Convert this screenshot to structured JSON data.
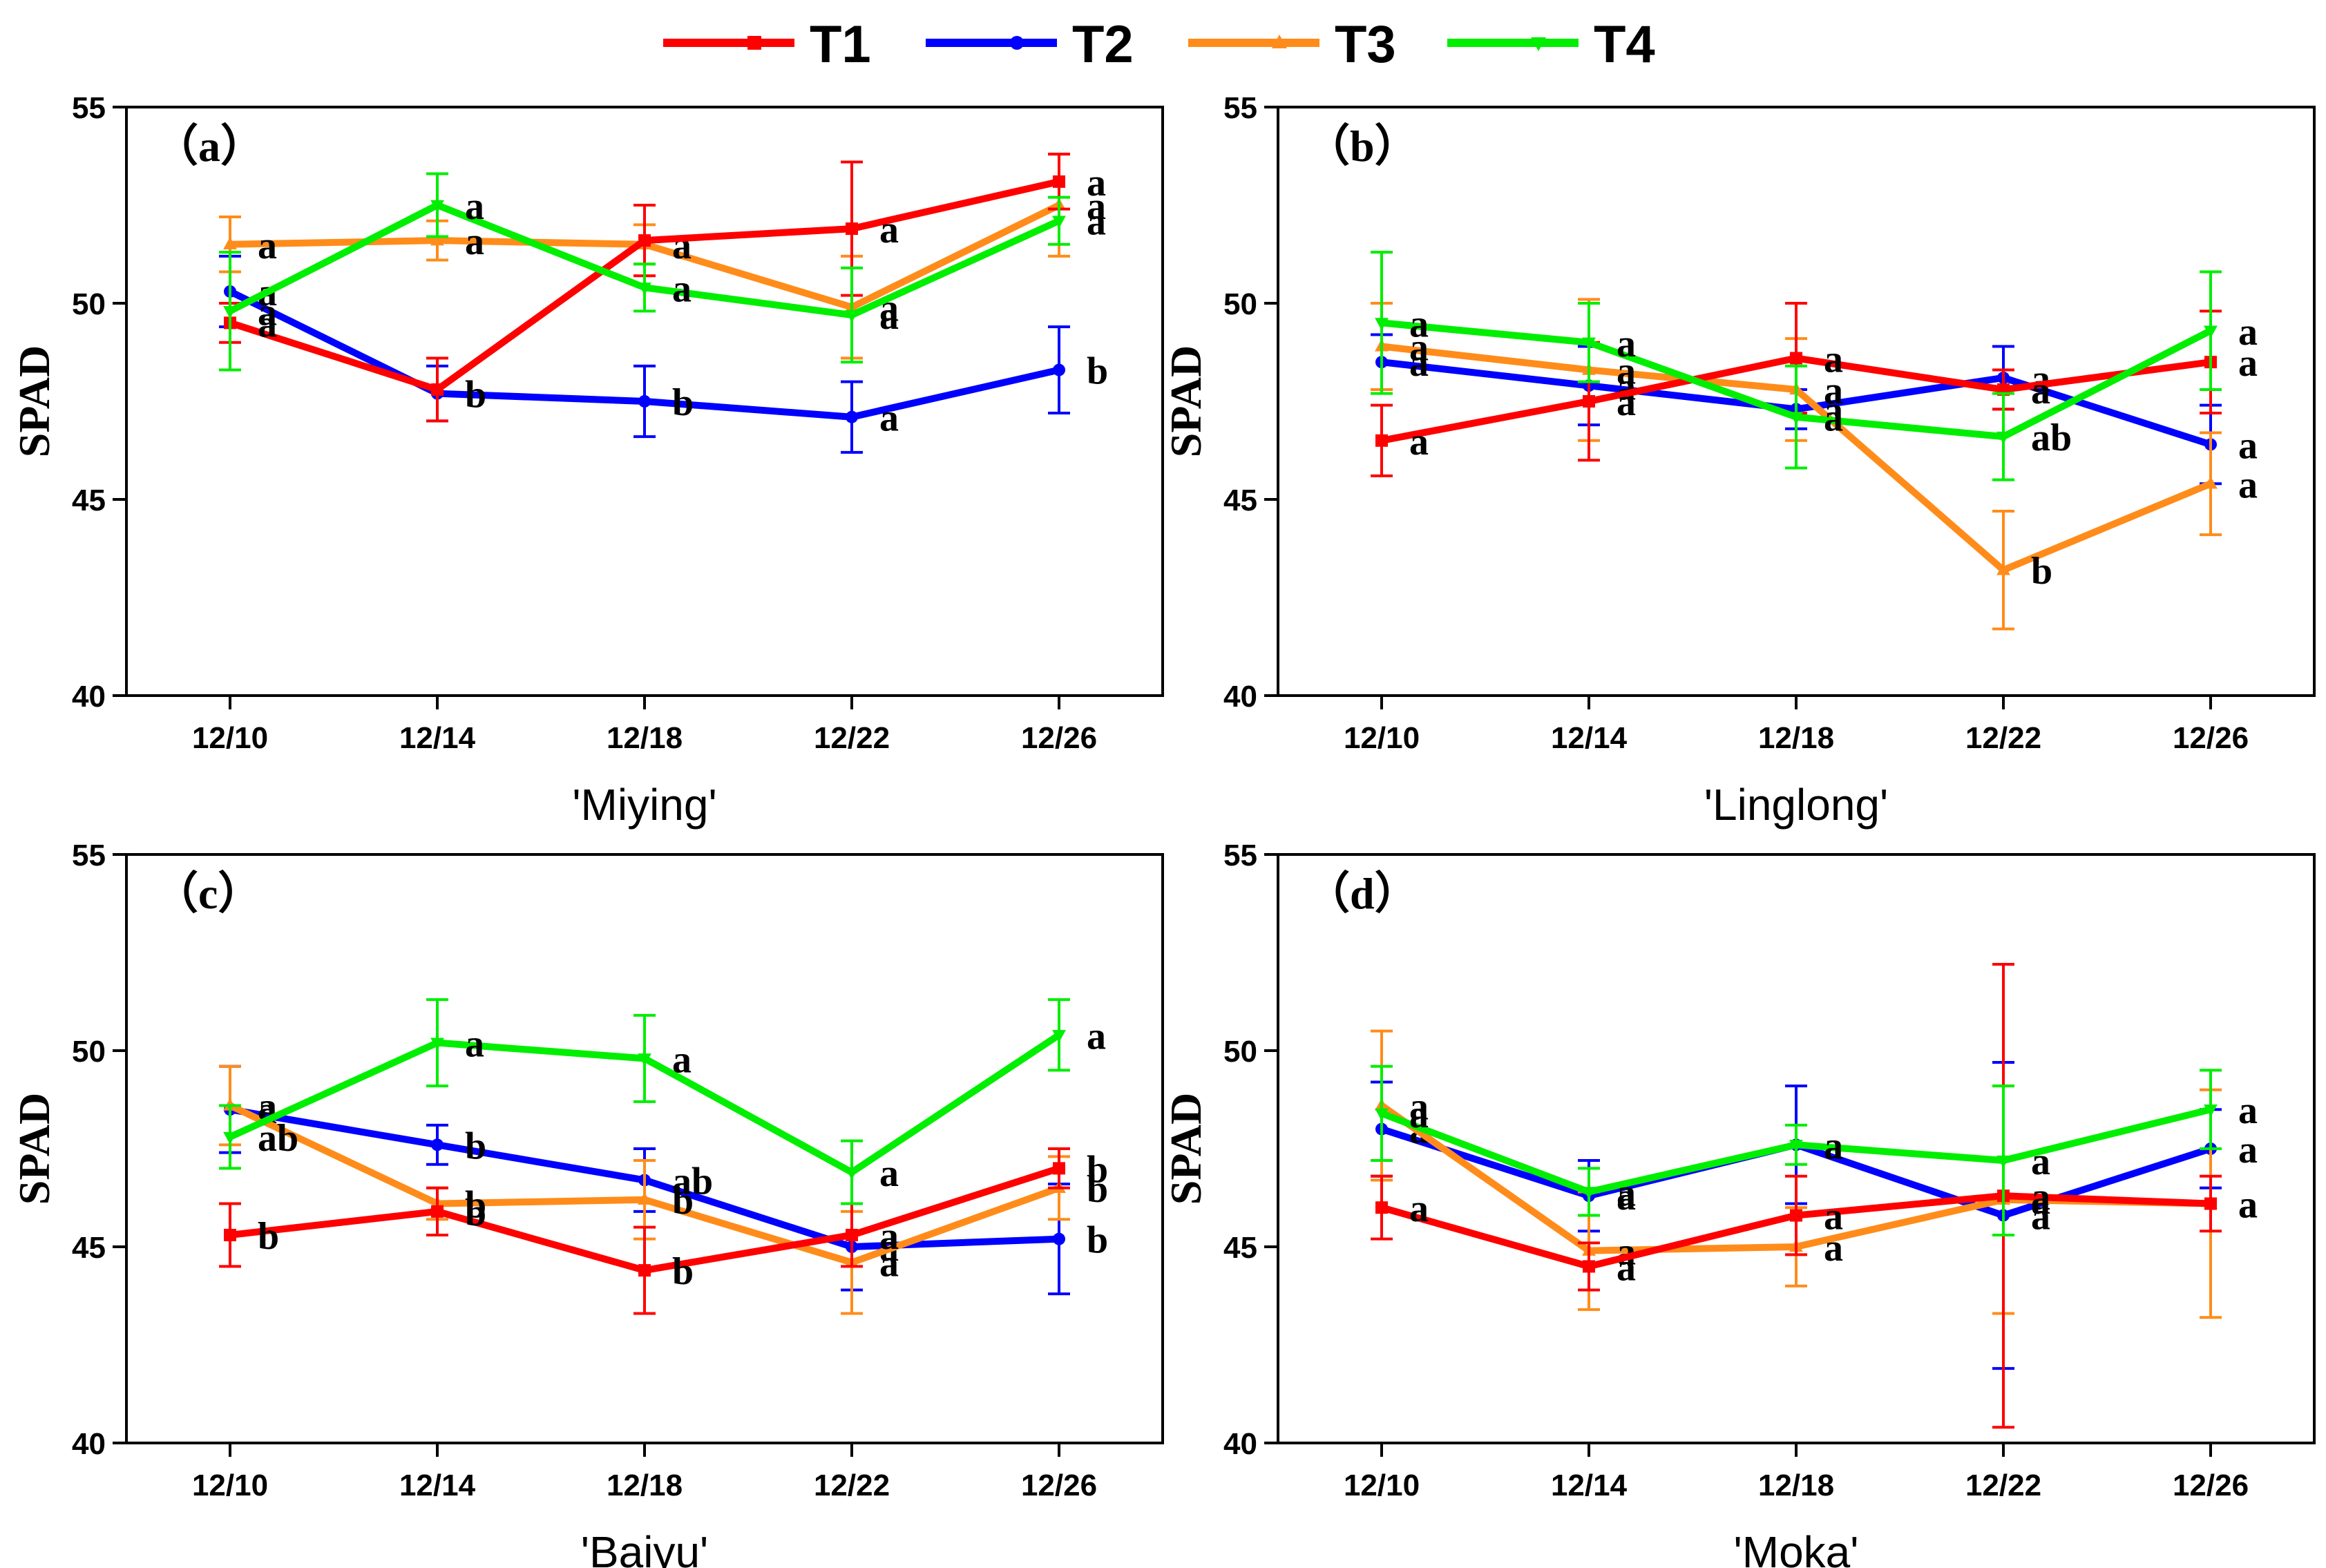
{
  "chart_data": {
    "type": "line",
    "title": "",
    "legend": {
      "placement": "top-center",
      "entries": [
        {
          "name": "T1",
          "color": "#ff0000",
          "marker": "square"
        },
        {
          "name": "T2",
          "color": "#0000ff",
          "marker": "circle"
        },
        {
          "name": "T3",
          "color": "#ff8c1a",
          "marker": "triangle-up"
        },
        {
          "name": "T4",
          "color": "#00ee00",
          "marker": "triangle-down"
        }
      ]
    },
    "panels": [
      {
        "id": "a",
        "panel_label": "（a）",
        "xlabel": "'Miying'",
        "ylabel": "SPAD",
        "categories": [
          "12/10",
          "12/14",
          "12/18",
          "12/22",
          "12/26"
        ],
        "ylim": [
          40,
          55
        ],
        "yticks": [
          40,
          45,
          50,
          55
        ],
        "series": [
          {
            "name": "T1",
            "values": [
              49.5,
              47.8,
              51.6,
              51.9,
              53.1
            ],
            "errors": [
              0.5,
              0.8,
              0.9,
              1.7,
              0.7
            ],
            "labels": [
              "a",
              "",
              "",
              "a",
              "a"
            ]
          },
          {
            "name": "T2",
            "values": [
              50.3,
              47.7,
              47.5,
              47.1,
              48.3
            ],
            "errors": [
              0.9,
              0.7,
              0.9,
              0.9,
              1.1
            ],
            "labels": [
              "a",
              "b",
              "b",
              "a",
              "b"
            ]
          },
          {
            "name": "T3",
            "values": [
              51.5,
              51.6,
              51.5,
              49.9,
              52.5
            ],
            "errors": [
              0.7,
              0.5,
              0.5,
              1.3,
              1.3
            ],
            "labels": [
              "a",
              "a",
              "a",
              "a",
              "a"
            ]
          },
          {
            "name": "T4",
            "values": [
              49.8,
              52.5,
              50.4,
              49.7,
              52.1
            ],
            "errors": [
              1.5,
              0.8,
              0.6,
              1.2,
              0.6
            ],
            "labels": [
              "a",
              "a",
              "a",
              "a",
              "a"
            ]
          }
        ]
      },
      {
        "id": "b",
        "panel_label": "（b）",
        "xlabel": "'Linglong'",
        "ylabel": "SPAD",
        "categories": [
          "12/10",
          "12/14",
          "12/18",
          "12/22",
          "12/26"
        ],
        "ylim": [
          40,
          55
        ],
        "yticks": [
          40,
          45,
          50,
          55
        ],
        "series": [
          {
            "name": "T1",
            "values": [
              46.5,
              47.5,
              48.6,
              47.8,
              48.5
            ],
            "errors": [
              0.9,
              1.5,
              1.4,
              0.5,
              1.3
            ],
            "labels": [
              "a",
              "a",
              "a",
              "a",
              "a"
            ]
          },
          {
            "name": "T2",
            "values": [
              48.5,
              47.9,
              47.3,
              48.1,
              46.4
            ],
            "errors": [
              0.7,
              1.0,
              0.5,
              0.8,
              1.0
            ],
            "labels": [
              "a",
              "a",
              "a",
              "a",
              "a"
            ]
          },
          {
            "name": "T3",
            "values": [
              48.9,
              48.3,
              47.8,
              43.2,
              45.4
            ],
            "errors": [
              1.1,
              1.8,
              1.3,
              1.5,
              1.3
            ],
            "labels": [
              "a",
              "a",
              "a",
              "b",
              "a"
            ]
          },
          {
            "name": "T4",
            "values": [
              49.5,
              49.0,
              47.1,
              46.6,
              49.3
            ],
            "errors": [
              1.8,
              1.0,
              1.3,
              1.1,
              1.5
            ],
            "labels": [
              "a",
              "a",
              "a",
              "ab",
              "a"
            ]
          }
        ]
      },
      {
        "id": "c",
        "panel_label": "（c）",
        "xlabel": "'Baiyu'",
        "ylabel": "SPAD",
        "categories": [
          "12/10",
          "12/14",
          "12/18",
          "12/22",
          "12/26"
        ],
        "ylim": [
          40,
          55
        ],
        "yticks": [
          40,
          45,
          50,
          55
        ],
        "series": [
          {
            "name": "T1",
            "values": [
              45.3,
              45.9,
              44.4,
              45.3,
              47.0
            ],
            "errors": [
              0.8,
              0.6,
              1.1,
              0.8,
              0.5
            ],
            "labels": [
              "b",
              "b",
              "b",
              "a",
              "b"
            ]
          },
          {
            "name": "T2",
            "values": [
              48.5,
              47.6,
              46.7,
              45.0,
              45.2
            ],
            "errors": [
              1.1,
              0.5,
              0.8,
              1.1,
              1.4
            ],
            "labels": [
              "a",
              "b",
              "ab",
              "a",
              "b"
            ]
          },
          {
            "name": "T3",
            "values": [
              48.6,
              46.1,
              46.2,
              44.6,
              46.5
            ],
            "errors": [
              1.0,
              0.4,
              1.0,
              1.3,
              0.8
            ],
            "labels": [
              "a",
              "b",
              "b",
              "a",
              "b"
            ]
          },
          {
            "name": "T4",
            "values": [
              47.8,
              50.2,
              49.8,
              46.9,
              50.4
            ],
            "errors": [
              0.8,
              1.1,
              1.1,
              0.8,
              0.9
            ],
            "labels": [
              "ab",
              "a",
              "a",
              "a",
              "a"
            ]
          }
        ]
      },
      {
        "id": "d",
        "panel_label": "（d）",
        "xlabel": "'Moka'",
        "ylabel": "SPAD",
        "categories": [
          "12/10",
          "12/14",
          "12/18",
          "12/22",
          "12/26"
        ],
        "ylim": [
          40,
          55
        ],
        "yticks": [
          40,
          45,
          50,
          55
        ],
        "series": [
          {
            "name": "T1",
            "values": [
              46.0,
              44.5,
              45.8,
              46.3,
              46.1
            ],
            "errors": [
              0.8,
              0.6,
              1.0,
              5.9,
              0.7
            ],
            "labels": [
              "a",
              "a",
              "a",
              "a",
              "a"
            ]
          },
          {
            "name": "T2",
            "values": [
              48.0,
              46.3,
              47.6,
              45.8,
              47.5
            ],
            "errors": [
              1.2,
              0.9,
              1.5,
              3.9,
              1.0
            ],
            "labels": [
              "a",
              "a",
              "a",
              "a",
              "a"
            ]
          },
          {
            "name": "T3",
            "values": [
              48.6,
              44.9,
              45.0,
              46.2,
              46.1
            ],
            "errors": [
              1.9,
              1.5,
              1.0,
              2.9,
              2.9
            ],
            "labels": [
              "a",
              "a",
              "a",
              "a",
              "a"
            ]
          },
          {
            "name": "T4",
            "values": [
              48.4,
              46.4,
              47.6,
              47.2,
              48.5
            ],
            "errors": [
              1.2,
              0.6,
              0.5,
              1.9,
              1.0
            ],
            "labels": [
              "a",
              "a",
              "a",
              "a",
              "a"
            ]
          }
        ]
      }
    ]
  }
}
